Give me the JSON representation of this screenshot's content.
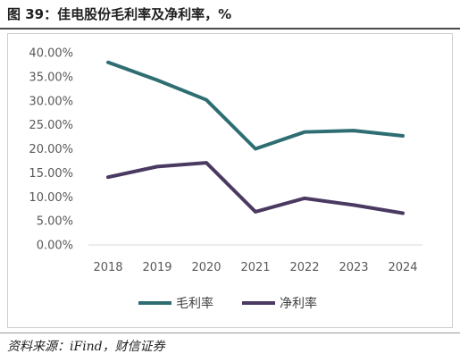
{
  "header": {
    "title": "图 39：佳电股份毛利率及净利率，%"
  },
  "footer": {
    "source": "资料来源：iFind，财信证券"
  },
  "chart_data": {
    "type": "line",
    "title": "",
    "xlabel": "",
    "ylabel": "",
    "categories": [
      "2018",
      "2019",
      "2020",
      "2021",
      "2022",
      "2023",
      "2024"
    ],
    "ylim": [
      0,
      40
    ],
    "yticks": [
      "0.00%",
      "5.00%",
      "10.00%",
      "15.00%",
      "20.00%",
      "25.00%",
      "30.00%",
      "35.00%",
      "40.00%"
    ],
    "grid": false,
    "legend": "bottom-center",
    "series": [
      {
        "name": "毛利率",
        "color": "#2e6e73",
        "values": [
          38.0,
          34.3,
          30.2,
          20.0,
          23.5,
          23.8,
          22.7
        ]
      },
      {
        "name": "净利率",
        "color": "#4a3a62",
        "values": [
          14.1,
          16.3,
          17.1,
          6.9,
          9.7,
          8.3,
          6.6
        ]
      }
    ]
  }
}
